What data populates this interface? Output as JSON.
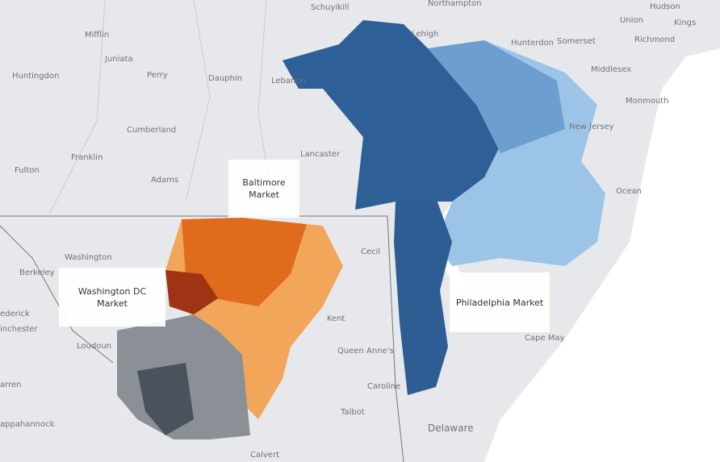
{
  "map": {
    "place_labels": [
      "Schuylkill",
      "Northampton",
      "Hudson",
      "Kings",
      "Union",
      "Richmond",
      "Mifflin",
      "Lehigh",
      "Hunterdon",
      "Somerset",
      "Juniata",
      "Middlesex",
      "Huntingdon",
      "Perry",
      "Dauphin",
      "Lebanon",
      "Monmouth",
      "New Jersey",
      "Cumberland",
      "Franklin",
      "Lancaster",
      "Fulton",
      "Adams",
      "Ocean",
      "Washington",
      "Cecil",
      "Berkeley",
      "Kent",
      "Cape May",
      "Loudoun",
      "Queen Anne's",
      "Caroline",
      "Talbot",
      "Delaware",
      "Calvert",
      "ederick",
      "inchester",
      "arren",
      "appahannock"
    ],
    "markets": [
      {
        "label": "Baltimore Market"
      },
      {
        "label": "Washington DC Market"
      },
      {
        "label": "Philadelphia Market"
      }
    ]
  }
}
